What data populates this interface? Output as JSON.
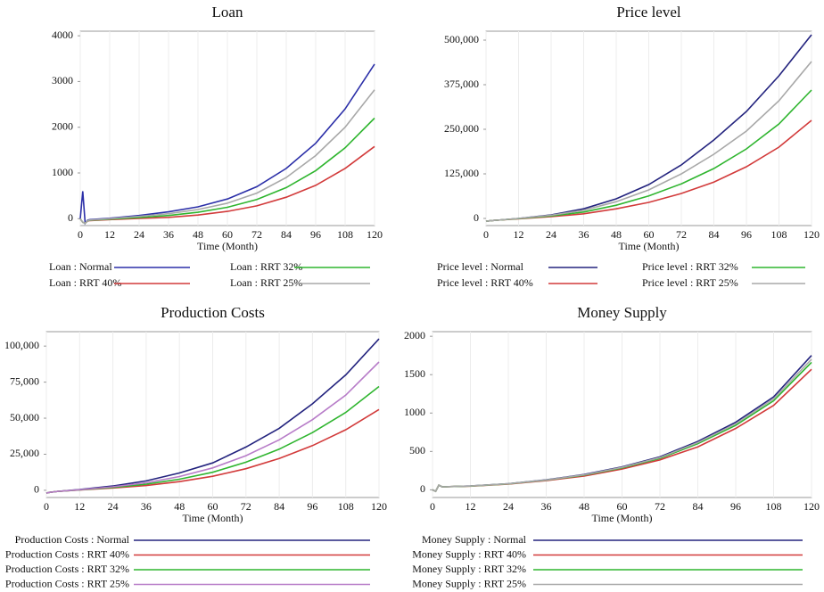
{
  "chart_data": [
    {
      "type": "line",
      "title": "Loan",
      "xlabel": "Time (Month)",
      "grid": true,
      "x": [
        0,
        1,
        2,
        3,
        4,
        12,
        24,
        36,
        48,
        60,
        72,
        84,
        96,
        108,
        120
      ],
      "xlim": [
        0,
        120
      ],
      "xticks": [
        0,
        12,
        24,
        36,
        48,
        60,
        72,
        84,
        96,
        108,
        120
      ],
      "ylim": [
        -150,
        4100
      ],
      "yticks": [
        0,
        1000,
        2000,
        3000,
        4000
      ],
      "series": [
        {
          "name": "Loan : Normal",
          "color": "#2b2fa8",
          "values": [
            0,
            600,
            -100,
            -30,
            -20,
            10,
            70,
            150,
            260,
            430,
            700,
            1100,
            1650,
            2400,
            3380
          ]
        },
        {
          "name": "Loan : RRT 40%",
          "color": "#d23a3a",
          "values": [
            0,
            -80,
            -100,
            -50,
            -40,
            -20,
            5,
            30,
            80,
            160,
            280,
            470,
            730,
            1100,
            1580
          ]
        },
        {
          "name": "Loan : RRT 32%",
          "color": "#2fb52f",
          "values": [
            0,
            -80,
            -100,
            -45,
            -35,
            -10,
            25,
            70,
            140,
            250,
            420,
            680,
            1050,
            1550,
            2200
          ]
        },
        {
          "name": "Loan : RRT 25%",
          "color": "#a8a8a8",
          "values": [
            0,
            -80,
            -100,
            -40,
            -30,
            0,
            50,
            110,
            200,
            340,
            560,
            900,
            1380,
            2000,
            2820
          ]
        }
      ]
    },
    {
      "type": "line",
      "title": "Price level",
      "xlabel": "Time (Month)",
      "grid": true,
      "x": [
        0,
        1,
        2,
        3,
        4,
        12,
        24,
        36,
        48,
        60,
        72,
        84,
        96,
        108,
        120
      ],
      "xlim": [
        0,
        120
      ],
      "xticks": [
        0,
        12,
        24,
        36,
        48,
        60,
        72,
        84,
        96,
        108,
        120
      ],
      "ylim": [
        -20000,
        525000
      ],
      "yticks": [
        0,
        {
          "value": 125000,
          "label": "125,000"
        },
        {
          "value": 250000,
          "label": "250,000"
        },
        {
          "value": 375000,
          "label": "375,000"
        },
        {
          "value": 500000,
          "label": "500,000"
        }
      ],
      "series": [
        {
          "name": "Price level : Normal",
          "color": "#23237e",
          "values": [
            -8000,
            -7000,
            -6000,
            -5500,
            -5000,
            0,
            10000,
            27000,
            55000,
            95000,
            150000,
            220000,
            300000,
            400000,
            515000
          ]
        },
        {
          "name": "Price level : RRT 40%",
          "color": "#d23a3a",
          "values": [
            -8000,
            -7000,
            -6000,
            -5500,
            -5000,
            -1000,
            5000,
            13000,
            27000,
            45000,
            70000,
            102000,
            145000,
            200000,
            275000
          ]
        },
        {
          "name": "Price level : RRT 32%",
          "color": "#2fb52f",
          "values": [
            -8000,
            -7000,
            -6000,
            -5500,
            -5000,
            -500,
            7000,
            18000,
            37000,
            63000,
            97000,
            140000,
            195000,
            265000,
            360000
          ]
        },
        {
          "name": "Price level : RRT 25%",
          "color": "#a8a8a8",
          "values": [
            -8000,
            -7000,
            -6000,
            -5500,
            -5000,
            0,
            9000,
            23000,
            47000,
            80000,
            125000,
            180000,
            245000,
            330000,
            440000
          ]
        }
      ]
    },
    {
      "type": "line",
      "title": "Production Costs",
      "xlabel": "Time (Month)",
      "grid": true,
      "x": [
        0,
        1,
        2,
        3,
        4,
        12,
        24,
        36,
        48,
        60,
        72,
        84,
        96,
        108,
        120
      ],
      "xlim": [
        0,
        120
      ],
      "xticks": [
        0,
        12,
        24,
        36,
        48,
        60,
        72,
        84,
        96,
        108,
        120
      ],
      "ylim": [
        -5000,
        110000
      ],
      "yticks": [
        0,
        {
          "value": 25000,
          "label": "25,000"
        },
        {
          "value": 50000,
          "label": "50,000"
        },
        {
          "value": 75000,
          "label": "75,000"
        },
        {
          "value": 100000,
          "label": "100,000"
        }
      ],
      "series": [
        {
          "name": "Production Costs : Normal",
          "color": "#23237e",
          "values": [
            -2000,
            -1500,
            -1200,
            -1000,
            -800,
            500,
            3000,
            6500,
            12000,
            19000,
            30000,
            43000,
            60000,
            80000,
            105000
          ]
        },
        {
          "name": "Production Costs : RRT 40%",
          "color": "#d23a3a",
          "values": [
            -2000,
            -1500,
            -1200,
            -1000,
            -800,
            200,
            1600,
            3300,
            6000,
            9700,
            15000,
            22000,
            31000,
            42000,
            56000
          ]
        },
        {
          "name": "Production Costs : RRT 32%",
          "color": "#2fb52f",
          "values": [
            -2000,
            -1500,
            -1200,
            -1000,
            -800,
            300,
            2000,
            4200,
            7700,
            12500,
            19500,
            28500,
            40000,
            54000,
            72000
          ]
        },
        {
          "name": "Production Costs : RRT 25%",
          "color": "#b77cc8",
          "values": [
            -2000,
            -1500,
            -1200,
            -1000,
            -800,
            400,
            2400,
            5200,
            9500,
            15500,
            24000,
            35000,
            49000,
            66000,
            89000
          ]
        }
      ]
    },
    {
      "type": "line",
      "title": "Money Supply",
      "xlabel": "Time (Month)",
      "grid": true,
      "x": [
        0,
        1,
        2,
        3,
        4,
        12,
        24,
        36,
        48,
        60,
        72,
        84,
        96,
        108,
        120
      ],
      "xlim": [
        0,
        120
      ],
      "xticks": [
        0,
        12,
        24,
        36,
        48,
        60,
        72,
        84,
        96,
        108,
        120
      ],
      "ylim": [
        -100,
        2060
      ],
      "yticks": [
        0,
        500,
        1000,
        1500,
        2000
      ],
      "series": [
        {
          "name": "Money Supply : Normal",
          "color": "#23237e",
          "values": [
            0,
            -20,
            60,
            40,
            40,
            50,
            80,
            130,
            200,
            300,
            430,
            630,
            880,
            1210,
            1750
          ]
        },
        {
          "name": "Money Supply : RRT 40%",
          "color": "#d23a3a",
          "values": [
            0,
            -20,
            60,
            40,
            40,
            48,
            75,
            120,
            180,
            270,
            390,
            560,
            800,
            1100,
            1570
          ]
        },
        {
          "name": "Money Supply : RRT 32%",
          "color": "#2fb52f",
          "values": [
            0,
            -20,
            60,
            40,
            40,
            49,
            78,
            125,
            190,
            285,
            410,
            600,
            840,
            1160,
            1660
          ]
        },
        {
          "name": "Money Supply : RRT 25%",
          "color": "#a8a8a8",
          "values": [
            0,
            -20,
            60,
            40,
            40,
            50,
            79,
            128,
            195,
            292,
            420,
            615,
            860,
            1185,
            1700
          ]
        }
      ]
    }
  ]
}
